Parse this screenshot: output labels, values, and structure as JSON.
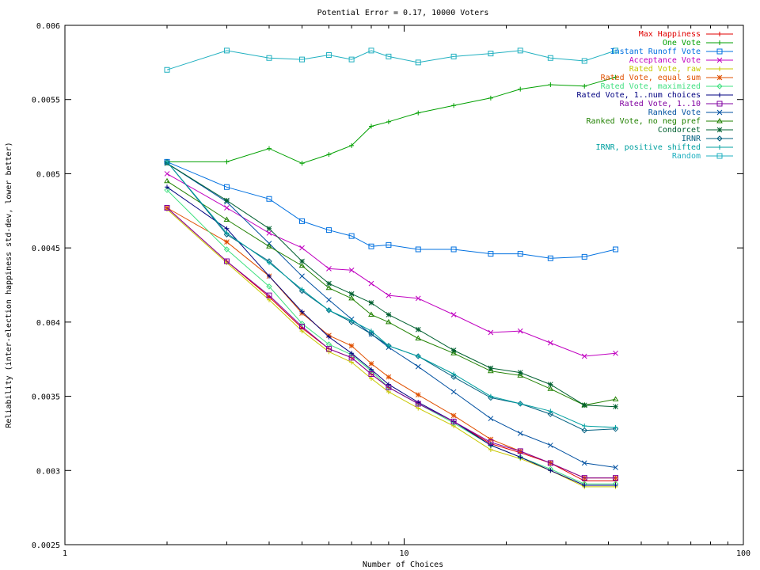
{
  "chart_data": {
    "type": "line",
    "title": "Potential Error = 0.17, 10000 Voters",
    "xlabel": "Number of Choices",
    "ylabel": "Reliability (inter-election happiness std-dev, lower better)",
    "xscale": "log",
    "xlim": [
      1,
      100
    ],
    "ylim": [
      0.0025,
      0.006
    ],
    "xticks": [
      1,
      10,
      100
    ],
    "xtick_labels": [
      "1",
      "10",
      "100"
    ],
    "yticks": [
      0.0025,
      0.003,
      0.0035,
      0.004,
      0.0045,
      0.005,
      0.0055,
      0.006
    ],
    "ytick_labels": [
      "0.0025",
      "0.003",
      "0.0035",
      "0.004",
      "0.0045",
      "0.005",
      "0.0055",
      "0.006"
    ],
    "grid": false,
    "legend_position": "top-right",
    "x": [
      2,
      3,
      4,
      5,
      6,
      7,
      8,
      9,
      11,
      14,
      18,
      22,
      27,
      34,
      42
    ],
    "series": [
      {
        "name": "Max Happiness",
        "color": "#e00000",
        "marker": "plus",
        "values": [
          0.00477,
          0.00441,
          0.00417,
          0.00396,
          0.00382,
          0.00376,
          0.00365,
          0.00356,
          0.00345,
          0.00333,
          0.00318,
          0.00312,
          0.00305,
          0.00293,
          0.00293
        ]
      },
      {
        "name": "One Vote",
        "color": "#00a000",
        "marker": "plus",
        "values": [
          0.00508,
          0.00508,
          0.00517,
          0.00507,
          0.00513,
          0.00519,
          0.00532,
          0.00535,
          0.00541,
          0.00546,
          0.00551,
          0.00557,
          0.0056,
          0.00559,
          0.00565
        ]
      },
      {
        "name": "Instant Runoff Vote",
        "color": "#0070e0",
        "marker": "square",
        "values": [
          0.00508,
          0.00491,
          0.00483,
          0.00468,
          0.00462,
          0.00458,
          0.00451,
          0.00452,
          0.00449,
          0.00449,
          0.00446,
          0.00446,
          0.00443,
          0.00444,
          0.00449
        ]
      },
      {
        "name": "Acceptance Vote",
        "color": "#c000c0",
        "marker": "x",
        "values": [
          0.005,
          0.00477,
          0.0046,
          0.0045,
          0.00436,
          0.00435,
          0.00426,
          0.00418,
          0.00416,
          0.00405,
          0.00393,
          0.00394,
          0.00386,
          0.00377,
          0.00379
        ]
      },
      {
        "name": "Rated Vote, raw",
        "color": "#c8c800",
        "marker": "plus",
        "values": [
          0.00476,
          0.0044,
          0.00415,
          0.00394,
          0.0038,
          0.00373,
          0.00362,
          0.00353,
          0.00342,
          0.0033,
          0.00314,
          0.00308,
          0.003,
          0.00289,
          0.00289
        ]
      },
      {
        "name": "Rated Vote, equal sum",
        "color": "#e05000",
        "marker": "star",
        "values": [
          0.00477,
          0.00454,
          0.00431,
          0.00406,
          0.00391,
          0.00384,
          0.00372,
          0.00363,
          0.00351,
          0.00337,
          0.00321,
          0.00313,
          0.00305,
          0.00295,
          0.00295
        ]
      },
      {
        "name": "Rated Vote, maximized",
        "color": "#40e080",
        "marker": "diamond",
        "values": [
          0.00489,
          0.00449,
          0.00424,
          0.00399,
          0.00385,
          0.00378,
          0.00367,
          0.00356,
          0.00345,
          0.00332,
          0.00317,
          0.00309,
          0.00301,
          0.00291,
          0.00291
        ]
      },
      {
        "name": "Rated Vote, 1..num choices",
        "color": "#000080",
        "marker": "plus",
        "values": [
          0.00491,
          0.00463,
          0.00431,
          0.00407,
          0.0039,
          0.00379,
          0.00368,
          0.00358,
          0.00346,
          0.00333,
          0.00317,
          0.00309,
          0.003,
          0.0029,
          0.0029
        ]
      },
      {
        "name": "Rated Vote, 1..10",
        "color": "#8000a0",
        "marker": "square",
        "values": [
          0.00477,
          0.00441,
          0.00418,
          0.00397,
          0.00382,
          0.00376,
          0.00365,
          0.00356,
          0.00345,
          0.00333,
          0.00319,
          0.00313,
          0.00305,
          0.00295,
          0.00295
        ]
      },
      {
        "name": "Ranked Vote",
        "color": "#0050a0",
        "marker": "x",
        "values": [
          0.00507,
          0.00481,
          0.00453,
          0.00431,
          0.00415,
          0.00402,
          0.00392,
          0.00383,
          0.0037,
          0.00353,
          0.00335,
          0.00325,
          0.00317,
          0.00305,
          0.00302
        ]
      },
      {
        "name": "Ranked Vote, no neg pref",
        "color": "#208000",
        "marker": "triangle",
        "values": [
          0.00495,
          0.00469,
          0.00451,
          0.00438,
          0.00423,
          0.00416,
          0.00405,
          0.004,
          0.00389,
          0.00379,
          0.00367,
          0.00364,
          0.00355,
          0.00344,
          0.00348
        ]
      },
      {
        "name": "Condorcet",
        "color": "#006030",
        "marker": "star",
        "values": [
          0.00507,
          0.00482,
          0.00463,
          0.00441,
          0.00426,
          0.00419,
          0.00413,
          0.00405,
          0.00395,
          0.00381,
          0.00369,
          0.00366,
          0.00358,
          0.00344,
          0.00343
        ]
      },
      {
        "name": "IRNR",
        "color": "#006080",
        "marker": "diamond",
        "values": [
          0.00508,
          0.00459,
          0.00441,
          0.00421,
          0.00408,
          0.004,
          0.00392,
          0.00384,
          0.00377,
          0.00363,
          0.00349,
          0.00345,
          0.00338,
          0.00327,
          0.00328
        ]
      },
      {
        "name": "IRNR, positive shifted",
        "color": "#00a0a0",
        "marker": "plus",
        "values": [
          0.00508,
          0.0046,
          0.0044,
          0.00422,
          0.00408,
          0.00401,
          0.00394,
          0.00384,
          0.00377,
          0.00365,
          0.0035,
          0.00345,
          0.0034,
          0.0033,
          0.00329
        ]
      },
      {
        "name": "Random",
        "color": "#20b0c0",
        "marker": "square",
        "values": [
          0.0057,
          0.00583,
          0.00578,
          0.00577,
          0.0058,
          0.00577,
          0.00583,
          0.00579,
          0.00575,
          0.00579,
          0.00581,
          0.00583,
          0.00578,
          0.00576,
          0.00583
        ]
      }
    ]
  }
}
